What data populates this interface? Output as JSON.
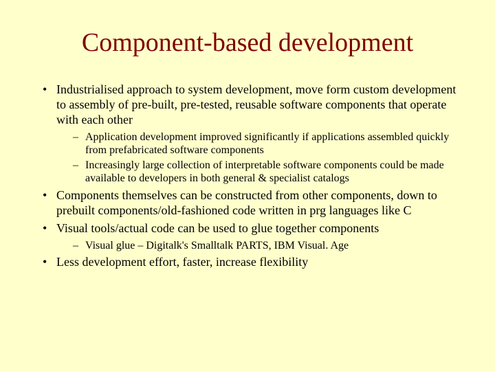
{
  "title": "Component-based development",
  "bullets": [
    {
      "text": "Industrialised approach to system development, move form custom development to assembly of pre-built, pre-tested, reusable software components that operate with each other",
      "subs": [
        "Application development improved significantly if applications assembled quickly from prefabricated software components",
        "Increasingly large collection of interpretable software components could be made available to developers in both general & specialist catalogs"
      ]
    },
    {
      "text": "Components themselves can be constructed from other components, down to prebuilt components/old-fashioned code written in prg languages like C",
      "subs": []
    },
    {
      "text": "Visual tools/actual code can be used to glue together components",
      "subs": [
        "Visual glue – Digitalk's Smalltalk PARTS, IBM Visual. Age"
      ]
    },
    {
      "text": "Less development effort, faster, increase flexibility",
      "subs": []
    }
  ],
  "colors": {
    "background": "#ffffcc",
    "title": "#800000",
    "body": "#000000"
  }
}
